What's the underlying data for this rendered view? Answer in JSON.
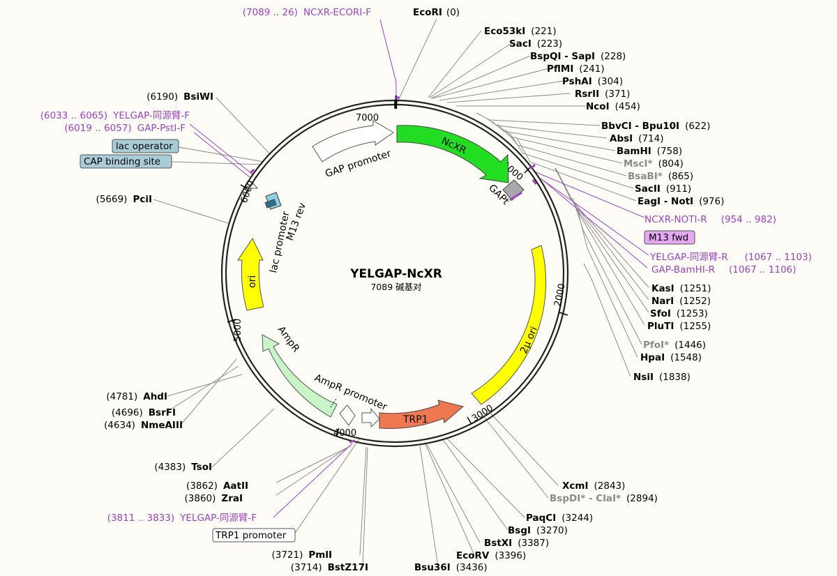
{
  "plasmid": {
    "name": "YELGAP-NcXR",
    "length_text": "7089 碱基对"
  },
  "ticks": [
    {
      "pos": "7000",
      "label": "7000"
    },
    {
      "pos": "1000",
      "label": "1000"
    },
    {
      "pos": "2000",
      "label": "2000"
    },
    {
      "pos": "3000",
      "label": "3000"
    },
    {
      "pos": "4000",
      "label": "4000"
    },
    {
      "pos": "5000",
      "label": "5000"
    },
    {
      "pos": "6000",
      "label": "6000"
    }
  ],
  "features": [
    {
      "id": "ncxr",
      "label": "NcXR",
      "color": "#22dd22"
    },
    {
      "id": "gap_promoter",
      "label": "GAP promoter",
      "color": "#ffffff"
    },
    {
      "id": "gapt",
      "label": "GAPt",
      "color": "#a9a9a9"
    },
    {
      "id": "two_mu_ori",
      "label": "2μ ori",
      "color": "#ffff00"
    },
    {
      "id": "trp1",
      "label": "TRP1",
      "color": "#f07850"
    },
    {
      "id": "ampr_promoter",
      "label": "AmpR promoter",
      "color": "#ffffff"
    },
    {
      "id": "ampr",
      "label": "AmpR",
      "color": "#c8f5c8"
    },
    {
      "id": "ori",
      "label": "ori",
      "color": "#ffff00"
    },
    {
      "id": "lac_promoter",
      "label": "lac promoter",
      "color": "#ffffff"
    },
    {
      "id": "m13_rev",
      "label": "M13 rev",
      "color": "#8fd0e0"
    }
  ],
  "sites": [
    {
      "name": "EcoRI",
      "pos": "(0)"
    },
    {
      "name": "Eco53kI",
      "pos": "(221)"
    },
    {
      "name": "SacI",
      "pos": "(223)"
    },
    {
      "name": "BspQI - SapI",
      "pos": "(228)"
    },
    {
      "name": "PflMI",
      "pos": "(241)"
    },
    {
      "name": "PshAI",
      "pos": "(304)"
    },
    {
      "name": "RsrII",
      "pos": "(371)"
    },
    {
      "name": "NcoI",
      "pos": "(454)"
    },
    {
      "name": "BbvCI - Bpu10I",
      "pos": "(622)"
    },
    {
      "name": "AbsI",
      "pos": "(714)"
    },
    {
      "name": "BamHI",
      "pos": "(758)"
    },
    {
      "name": "MscI*",
      "pos": "(804)"
    },
    {
      "name": "BsaBI*",
      "pos": "(865)"
    },
    {
      "name": "SacII",
      "pos": "(911)"
    },
    {
      "name": "EagI - NotI",
      "pos": "(976)"
    },
    {
      "name": "KasI",
      "pos": "(1251)"
    },
    {
      "name": "NarI",
      "pos": "(1252)"
    },
    {
      "name": "SfoI",
      "pos": "(1253)"
    },
    {
      "name": "PluTI",
      "pos": "(1255)"
    },
    {
      "name": "PfoI*",
      "pos": "(1446)"
    },
    {
      "name": "HpaI",
      "pos": "(1548)"
    },
    {
      "name": "NsiI",
      "pos": "(1838)"
    },
    {
      "name": "XcmI",
      "pos": "(2843)"
    },
    {
      "name_a": "BspDI*",
      "name_b": "ClaI*",
      "pos": "(2894)"
    },
    {
      "name": "PaqCI",
      "pos": "(3244)"
    },
    {
      "name": "BsgI",
      "pos": "(3270)"
    },
    {
      "name": "BstXI",
      "pos": "(3387)"
    },
    {
      "name": "EcoRV",
      "pos": "(3396)"
    },
    {
      "name": "Bsu36I",
      "pos": "(3436)"
    },
    {
      "name": "BstZ17I",
      "pos": "(3714)"
    },
    {
      "name": "PmlI",
      "pos": "(3721)"
    },
    {
      "name": "ZraI",
      "pos": "(3860)"
    },
    {
      "name": "AatII",
      "pos": "(3862)"
    },
    {
      "name": "TsoI",
      "pos": "(4383)"
    },
    {
      "name": "NmeAIII",
      "pos": "(4634)"
    },
    {
      "name": "BsrFI",
      "pos": "(4696)"
    },
    {
      "name": "AhdI",
      "pos": "(4781)"
    },
    {
      "name": "PciI",
      "pos": "(5669)"
    },
    {
      "name": "BsiWI",
      "pos": "(6190)"
    }
  ],
  "primers": [
    {
      "range": "(7089 .. 26)",
      "name": "NCXR-ECORI-F"
    },
    {
      "range": "(6033 .. 6065)",
      "name": "YELGAP-同源臂-F"
    },
    {
      "range": "(6019 .. 6057)",
      "name": "GAP-PstI-F"
    },
    {
      "name": "NCXR-NOTI-R",
      "range": "(954 .. 982)"
    },
    {
      "name": "YELGAP-同源臂-R",
      "range": "(1067 .. 1103)"
    },
    {
      "name": "GAP-BamHI-R",
      "range": "(1067 .. 1106)"
    },
    {
      "range": "(3811 .. 3833)",
      "name": "YELGAP-同源臂-F"
    }
  ],
  "boxed_labels": [
    {
      "text": "lac operator",
      "color": "#a8ccd8"
    },
    {
      "text": "CAP binding site",
      "color": "#a8ccd8"
    },
    {
      "text": "M13 fwd",
      "color": "#e4a8f0"
    },
    {
      "text": "TRP1 promoter",
      "color": "#ffffff"
    }
  ]
}
